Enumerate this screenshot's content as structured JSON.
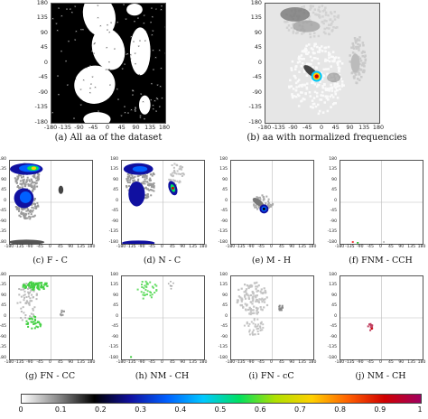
{
  "axes": {
    "big_y": [
      "180",
      "135",
      "90",
      "45",
      "0",
      "-45",
      "-90",
      "-135",
      "-180"
    ],
    "big_x": [
      "-180",
      "-135",
      "-90",
      "-45",
      "0",
      "45",
      "90",
      "135",
      "180"
    ],
    "small_y": [
      "180",
      "135",
      "90",
      "45",
      "0",
      "-45",
      "-90",
      "-135",
      "-180"
    ],
    "small_x": [
      "-180",
      "-135",
      "-90",
      "-45",
      "0",
      "45",
      "90",
      "135",
      "180"
    ]
  },
  "panels": [
    {
      "id": "a",
      "caption": "(a) All aa of the dataset",
      "style": "binary"
    },
    {
      "id": "b",
      "caption": "(b) aa with normalized frequencies",
      "style": "heat"
    },
    {
      "id": "c",
      "caption": "(c) F - C",
      "style": "fc"
    },
    {
      "id": "d",
      "caption": "(d) N - C",
      "style": "nc"
    },
    {
      "id": "e",
      "caption": "(e) M - H",
      "style": "mh"
    },
    {
      "id": "f",
      "caption": "(f) FNM - CCH",
      "style": "sparse"
    },
    {
      "id": "g",
      "caption": "(g) FN - CC",
      "style": "green"
    },
    {
      "id": "h",
      "caption": "(h) NM - CH",
      "style": "green2"
    },
    {
      "id": "i",
      "caption": "(i) FN - cC",
      "style": "grey"
    },
    {
      "id": "j",
      "caption": "(j) NM - CH",
      "style": "red"
    }
  ],
  "colorbar": {
    "labels": [
      "0",
      "0.1",
      "0.2",
      "0.3",
      "0.4",
      "0.5",
      "0.6",
      "0.7",
      "0.8",
      "0.9",
      "1"
    ],
    "colors": [
      "#ffffff",
      "#8a8a8a",
      "#000000",
      "#1010a0",
      "#0060ff",
      "#00c8ff",
      "#00e060",
      "#b0e000",
      "#ffd000",
      "#ff6000",
      "#d00000",
      "#a00060"
    ]
  }
}
